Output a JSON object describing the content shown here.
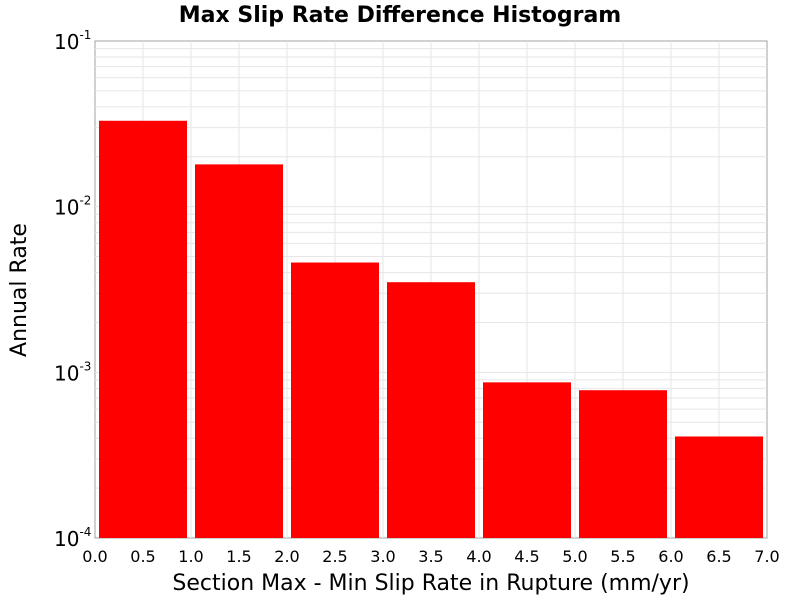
{
  "chart_data": {
    "type": "bar",
    "title": "Max Slip Rate Difference Histogram",
    "xlabel": "Section Max - Min Slip Rate in Rupture (mm/yr)",
    "ylabel": "Annual Rate",
    "y_scale": "log",
    "xlim": [
      0.0,
      7.0
    ],
    "ylim": [
      0.0001,
      0.1
    ],
    "x_ticks": [
      "0.0",
      "0.5",
      "1.0",
      "1.5",
      "2.0",
      "2.5",
      "3.0",
      "3.5",
      "4.0",
      "4.5",
      "5.0",
      "5.5",
      "6.0",
      "6.5",
      "7.0"
    ],
    "y_ticks": [
      {
        "base": "10",
        "exp": "-1"
      },
      {
        "base": "10",
        "exp": "-2"
      },
      {
        "base": "10",
        "exp": "-3"
      },
      {
        "base": "10",
        "exp": "-4"
      }
    ],
    "bins": [
      {
        "x0": 0.0,
        "x1": 1.0,
        "value": 0.033
      },
      {
        "x0": 1.0,
        "x1": 2.0,
        "value": 0.018
      },
      {
        "x0": 2.0,
        "x1": 3.0,
        "value": 0.0046
      },
      {
        "x0": 3.0,
        "x1": 4.0,
        "value": 0.0035
      },
      {
        "x0": 4.0,
        "x1": 5.0,
        "value": 0.00087
      },
      {
        "x0": 5.0,
        "x1": 6.0,
        "value": 0.00078
      },
      {
        "x0": 6.0,
        "x1": 7.0,
        "value": 0.00041
      }
    ],
    "bar_color": "#ff0000",
    "grid": true,
    "grid_color": "#e6e6e6",
    "legend": "none"
  }
}
